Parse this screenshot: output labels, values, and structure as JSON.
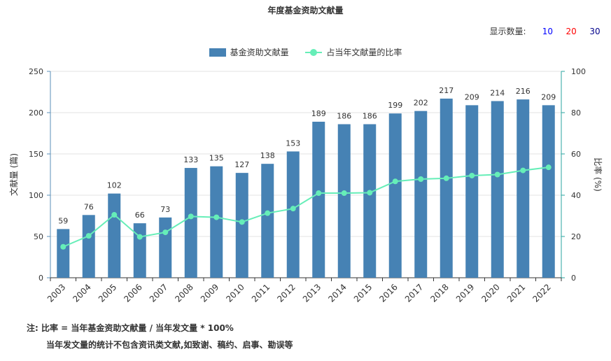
{
  "title": "年度基金资助文献量",
  "display_count": {
    "label": "显示数量:",
    "options": [
      {
        "label": "10",
        "color": "#0000ff"
      },
      {
        "label": "20",
        "color": "#ff0000"
      },
      {
        "label": "30",
        "color": "#00008b"
      }
    ]
  },
  "notes": {
    "line1": "注:  比率 = 当年基金资助文献量 / 当年发文量 * 100%",
    "line2": "当年发文量的统计不包含资讯类文献,如致谢、稿约、启事、勘误等"
  },
  "chart_data": {
    "type": "bar",
    "categories": [
      "2003",
      "2004",
      "2005",
      "2006",
      "2007",
      "2008",
      "2009",
      "2010",
      "2011",
      "2012",
      "2013",
      "2014",
      "2015",
      "2016",
      "2017",
      "2018",
      "2019",
      "2020",
      "2021",
      "2022"
    ],
    "series": [
      {
        "name": "基金资助文献量",
        "type": "bar",
        "axis": "left",
        "color": "#4682b4",
        "values": [
          59,
          76,
          102,
          66,
          73,
          133,
          135,
          127,
          138,
          153,
          189,
          186,
          186,
          199,
          202,
          217,
          209,
          214,
          216,
          209
        ]
      },
      {
        "name": "占当年文献量的比率",
        "type": "line",
        "axis": "right",
        "color": "#66eeb8",
        "values": [
          15,
          20.3,
          30.5,
          19.8,
          22,
          29.7,
          29.3,
          27,
          31.3,
          33.5,
          41,
          41,
          41.2,
          46.7,
          47.8,
          48.2,
          49.5,
          50,
          52,
          53.5
        ]
      }
    ],
    "ylabel": "文献量 (篇)",
    "y2label": "比率 (%)",
    "ylim": [
      0,
      250
    ],
    "y2lim": [
      0,
      100
    ],
    "yticks": [
      0,
      50,
      100,
      150,
      200,
      250
    ],
    "y2ticks": [
      0,
      20,
      40,
      60,
      80,
      100
    ],
    "grid": true,
    "legend_position": "top-center"
  }
}
